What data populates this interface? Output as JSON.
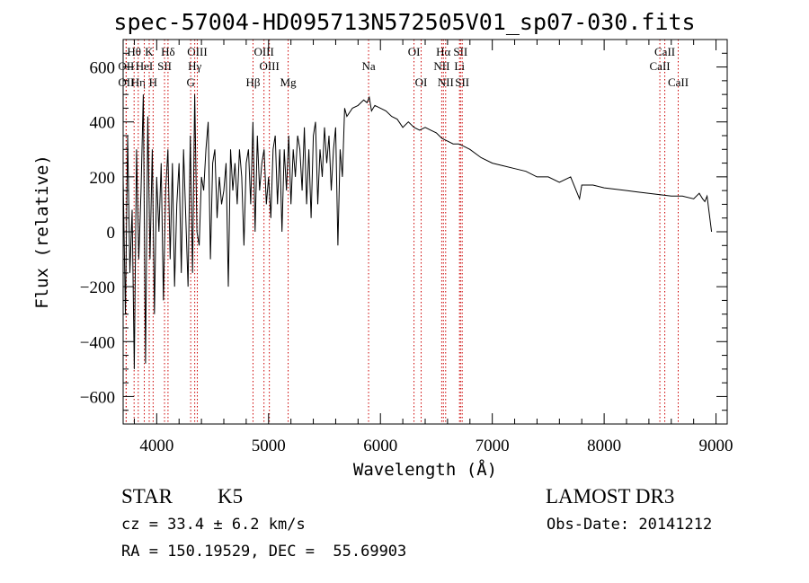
{
  "chart_data": {
    "type": "line",
    "title": "spec-57004-HD095713N572505V01_sp07-030.fits",
    "xlabel": "Wavelength (Å)",
    "ylabel": "Flux (relative)",
    "xlim": [
      3700,
      9100
    ],
    "ylim": [
      -700,
      700
    ],
    "xticks": [
      4000,
      5000,
      6000,
      7000,
      8000,
      9000
    ],
    "yticks": [
      -600,
      -400,
      -200,
      0,
      200,
      400,
      600
    ],
    "series": [
      {
        "name": "flux",
        "x": [
          3700,
          3720,
          3740,
          3760,
          3780,
          3800,
          3820,
          3840,
          3860,
          3880,
          3900,
          3920,
          3940,
          3960,
          3980,
          4000,
          4020,
          4040,
          4060,
          4080,
          4100,
          4120,
          4140,
          4160,
          4180,
          4200,
          4220,
          4240,
          4260,
          4280,
          4300,
          4320,
          4340,
          4360,
          4380,
          4400,
          4420,
          4440,
          4460,
          4480,
          4500,
          4520,
          4540,
          4560,
          4580,
          4600,
          4620,
          4640,
          4660,
          4680,
          4700,
          4720,
          4740,
          4760,
          4780,
          4800,
          4820,
          4840,
          4860,
          4880,
          4900,
          4920,
          4940,
          4960,
          4980,
          5000,
          5020,
          5040,
          5060,
          5080,
          5100,
          5120,
          5140,
          5160,
          5180,
          5200,
          5220,
          5240,
          5260,
          5280,
          5300,
          5320,
          5340,
          5360,
          5380,
          5400,
          5420,
          5440,
          5460,
          5480,
          5500,
          5520,
          5540,
          5560,
          5580,
          5600,
          5620,
          5640,
          5660,
          5680,
          5700,
          5750,
          5800,
          5850,
          5880,
          5900,
          5920,
          5950,
          6000,
          6050,
          6100,
          6150,
          6200,
          6250,
          6300,
          6350,
          6400,
          6450,
          6500,
          6550,
          6600,
          6650,
          6700,
          6750,
          6800,
          6900,
          7000,
          7100,
          7200,
          7300,
          7400,
          7500,
          7600,
          7700,
          7780,
          7800,
          7900,
          8000,
          8100,
          8200,
          8300,
          8400,
          8500,
          8600,
          8700,
          8800,
          8850,
          8880,
          8900,
          8920,
          8960
        ],
        "values": [
          200,
          -300,
          350,
          -150,
          80,
          -500,
          300,
          -100,
          150,
          500,
          -480,
          420,
          -100,
          300,
          -300,
          200,
          0,
          250,
          -250,
          150,
          300,
          -100,
          250,
          -200,
          100,
          250,
          -150,
          300,
          50,
          -200,
          350,
          -150,
          500,
          0,
          -50,
          200,
          150,
          300,
          400,
          -100,
          250,
          300,
          50,
          200,
          100,
          150,
          250,
          -200,
          300,
          150,
          250,
          100,
          300,
          200,
          -50,
          250,
          300,
          100,
          400,
          0,
          350,
          150,
          250,
          300,
          100,
          200,
          50,
          300,
          350,
          100,
          300,
          0,
          300,
          150,
          350,
          100,
          300,
          200,
          350,
          300,
          150,
          380,
          100,
          300,
          50,
          350,
          400,
          100,
          300,
          200,
          380,
          250,
          350,
          150,
          300,
          380,
          -50,
          300,
          200,
          450,
          420,
          450,
          460,
          480,
          470,
          490,
          440,
          460,
          450,
          440,
          420,
          410,
          380,
          400,
          380,
          370,
          380,
          370,
          360,
          340,
          330,
          320,
          320,
          310,
          300,
          270,
          250,
          240,
          230,
          220,
          200,
          200,
          180,
          200,
          120,
          170,
          170,
          160,
          155,
          150,
          145,
          140,
          135,
          130,
          130,
          120,
          140,
          120,
          110,
          130,
          0
        ]
      }
    ],
    "lines": [
      {
        "label": "Hθ",
        "x": 3798,
        "row": 1
      },
      {
        "label": "OII",
        "x": 3727,
        "row": 2
      },
      {
        "label": "OII",
        "x": 3727,
        "row": 3
      },
      {
        "label": "Hη",
        "x": 3835,
        "row": 3
      },
      {
        "label": "K",
        "x": 3933,
        "row": 1
      },
      {
        "label": "HeI",
        "x": 3889,
        "row": 2
      },
      {
        "label": "H",
        "x": 3968,
        "row": 3
      },
      {
        "label": "SII",
        "x": 4070,
        "row": 2
      },
      {
        "label": "Hδ",
        "x": 4101,
        "row": 1
      },
      {
        "label": "OIII",
        "x": 4363,
        "row": 1
      },
      {
        "label": "Hγ",
        "x": 4340,
        "row": 2
      },
      {
        "label": "G",
        "x": 4304,
        "row": 3
      },
      {
        "label": "Hβ",
        "x": 4861,
        "row": 3
      },
      {
        "label": "OIII",
        "x": 4959,
        "row": 1
      },
      {
        "label": "OIII",
        "x": 5007,
        "row": 2
      },
      {
        "label": "Mg",
        "x": 5175,
        "row": 3
      },
      {
        "label": "Na",
        "x": 5894,
        "row": 2
      },
      {
        "label": "OI",
        "x": 6300,
        "row": 1
      },
      {
        "label": "OI",
        "x": 6364,
        "row": 3
      },
      {
        "label": "Hα",
        "x": 6563,
        "row": 1
      },
      {
        "label": "SII",
        "x": 6716,
        "row": 1
      },
      {
        "label": "NII",
        "x": 6548,
        "row": 2
      },
      {
        "label": "Li",
        "x": 6707,
        "row": 2
      },
      {
        "label": "NII",
        "x": 6583,
        "row": 3
      },
      {
        "label": "SII",
        "x": 6731,
        "row": 3
      },
      {
        "label": "CaII",
        "x": 8542,
        "row": 1
      },
      {
        "label": "CaII",
        "x": 8498,
        "row": 2
      },
      {
        "label": "CaII",
        "x": 8662,
        "row": 3
      }
    ]
  },
  "info": {
    "class_label": "STAR",
    "subclass": "K5",
    "survey": "LAMOST DR3",
    "redshift_line": "cz = 33.4 ± 6.2 km/s",
    "obs_date": "Obs-Date: 20141212",
    "coords": "RA = 150.19529, DEC =  55.69903"
  }
}
